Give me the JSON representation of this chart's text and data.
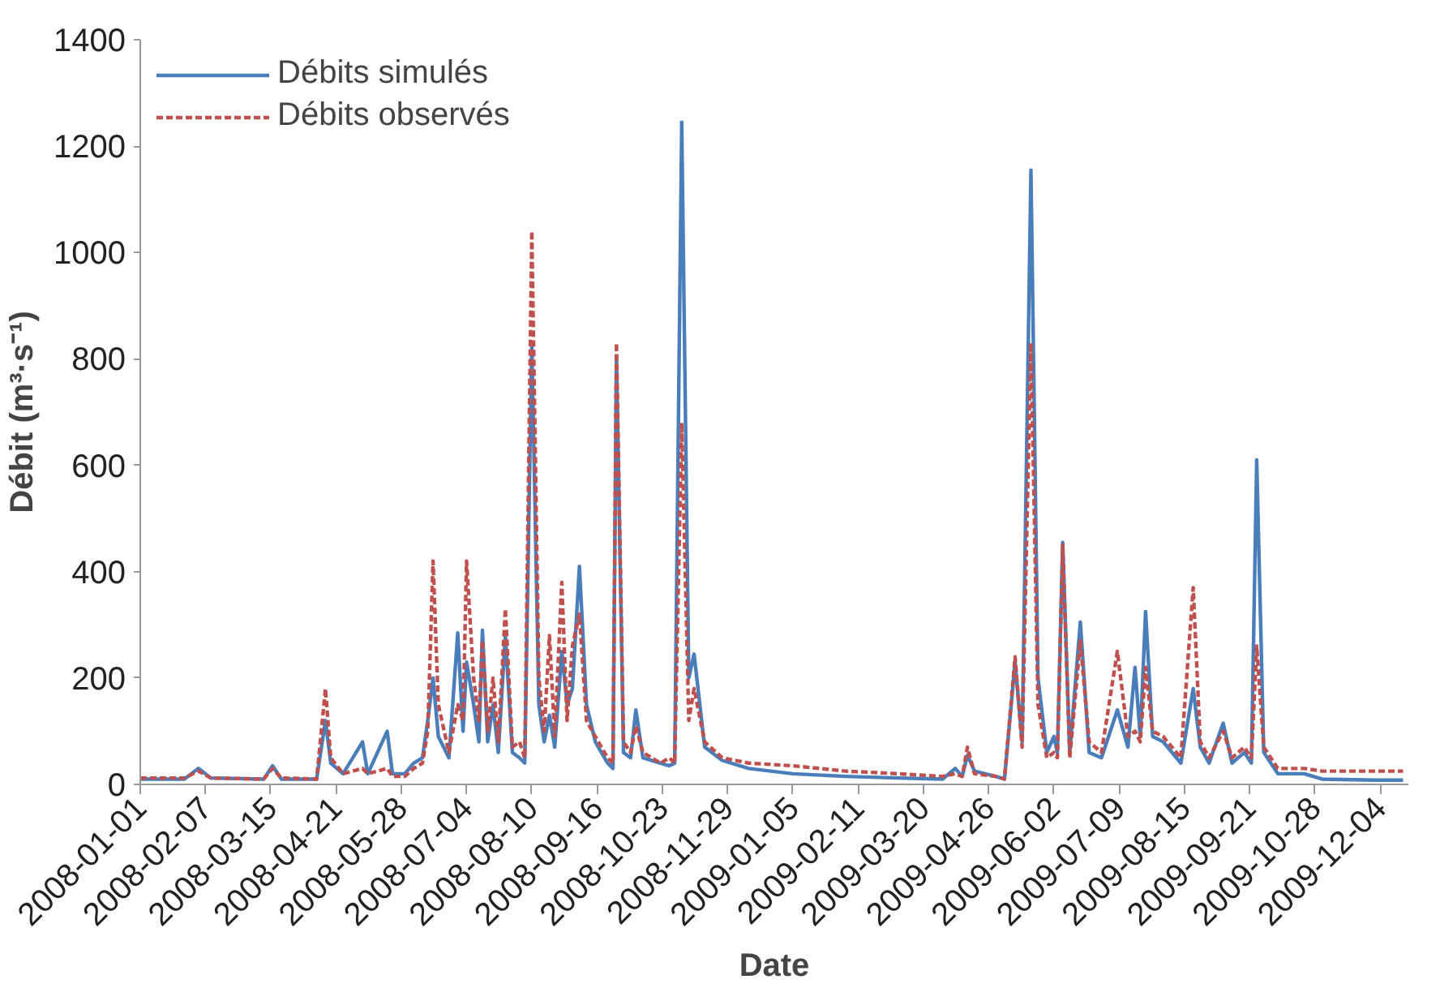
{
  "chart_data": {
    "type": "line",
    "xlabel": "Date",
    "ylabel": "Débit (m³·s⁻¹)",
    "x": [
      "2008-01-01",
      "2008-01-26",
      "2008-02-03",
      "2008-02-10",
      "2008-03-11",
      "2008-03-16",
      "2008-03-21",
      "2008-04-10",
      "2008-04-15",
      "2008-04-18",
      "2008-04-25",
      "2008-05-06",
      "2008-05-09",
      "2008-05-20",
      "2008-05-23",
      "2008-05-30",
      "2008-06-04",
      "2008-06-09",
      "2008-06-12",
      "2008-06-15",
      "2008-06-18",
      "2008-06-24",
      "2008-06-29",
      "2008-07-02",
      "2008-07-04",
      "2008-07-08",
      "2008-07-11",
      "2008-07-13",
      "2008-07-16",
      "2008-07-19",
      "2008-07-22",
      "2008-07-26",
      "2008-07-30",
      "2008-08-03",
      "2008-08-06",
      "2008-08-10",
      "2008-08-14",
      "2008-08-17",
      "2008-08-20",
      "2008-08-23",
      "2008-08-27",
      "2008-08-30",
      "2008-09-02",
      "2008-09-06",
      "2008-09-10",
      "2008-09-15",
      "2008-09-22",
      "2008-09-25",
      "2008-09-27",
      "2008-10-01",
      "2008-10-05",
      "2008-10-08",
      "2008-10-12",
      "2008-10-22",
      "2008-10-27",
      "2008-10-30",
      "2008-11-03",
      "2008-11-07",
      "2008-11-10",
      "2008-11-16",
      "2008-11-26",
      "2008-12-11",
      "2009-01-05",
      "2009-02-04",
      "2009-03-06",
      "2009-03-31",
      "2009-04-07",
      "2009-04-11",
      "2009-04-14",
      "2009-04-18",
      "2009-04-30",
      "2009-05-05",
      "2009-05-11",
      "2009-05-15",
      "2009-05-20",
      "2009-05-24",
      "2009-05-29",
      "2009-06-02",
      "2009-06-04",
      "2009-06-07",
      "2009-06-11",
      "2009-06-17",
      "2009-06-22",
      "2009-06-29",
      "2009-07-08",
      "2009-07-14",
      "2009-07-18",
      "2009-07-21",
      "2009-07-24",
      "2009-07-28",
      "2009-08-03",
      "2009-08-13",
      "2009-08-20",
      "2009-08-24",
      "2009-08-29",
      "2009-09-06",
      "2009-09-11",
      "2009-09-18",
      "2009-09-22",
      "2009-09-25",
      "2009-09-29",
      "2009-10-07",
      "2009-10-22",
      "2009-11-01",
      "2009-12-01",
      "2009-12-17"
    ],
    "series": [
      {
        "name": "Débits simulés",
        "color": "#4a7ebb",
        "line_style": "solid",
        "values": [
          10,
          10,
          30,
          12,
          10,
          35,
          10,
          10,
          120,
          40,
          20,
          80,
          20,
          100,
          20,
          20,
          40,
          50,
          120,
          200,
          90,
          50,
          285,
          100,
          230,
          150,
          80,
          290,
          80,
          150,
          60,
          280,
          60,
          50,
          40,
          830,
          150,
          80,
          130,
          70,
          250,
          150,
          180,
          410,
          150,
          80,
          40,
          30,
          800,
          60,
          50,
          140,
          50,
          40,
          35,
          40,
          1245,
          200,
          245,
          70,
          45,
          30,
          20,
          15,
          12,
          10,
          30,
          15,
          55,
          25,
          15,
          10,
          230,
          80,
          1155,
          200,
          60,
          90,
          60,
          455,
          60,
          305,
          60,
          50,
          140,
          70,
          220,
          90,
          325,
          90,
          80,
          40,
          180,
          70,
          40,
          115,
          40,
          60,
          40,
          610,
          60,
          20,
          20,
          10,
          8,
          8
        ]
      },
      {
        "name": "Débits observés",
        "color": "#c0504d",
        "line_style": "dashed",
        "values": [
          12,
          12,
          25,
          12,
          10,
          30,
          12,
          10,
          180,
          50,
          20,
          30,
          20,
          30,
          15,
          15,
          30,
          40,
          100,
          420,
          150,
          60,
          150,
          120,
          420,
          200,
          120,
          270,
          100,
          200,
          80,
          330,
          70,
          80,
          50,
          1040,
          200,
          100,
          280,
          90,
          380,
          120,
          260,
          320,
          120,
          90,
          50,
          40,
          830,
          80,
          60,
          110,
          60,
          40,
          50,
          40,
          680,
          120,
          180,
          80,
          50,
          40,
          35,
          25,
          20,
          15,
          20,
          15,
          70,
          20,
          15,
          10,
          240,
          70,
          830,
          150,
          50,
          60,
          50,
          450,
          50,
          270,
          80,
          60,
          250,
          90,
          100,
          80,
          220,
          100,
          90,
          50,
          370,
          80,
          50,
          100,
          50,
          70,
          50,
          260,
          70,
          30,
          30,
          25,
          25,
          25
        ]
      }
    ],
    "xlim": [
      "2008-01-01",
      "2009-12-20"
    ],
    "xticks": [
      "2008-01-01",
      "2008-02-07",
      "2008-03-15",
      "2008-04-21",
      "2008-05-28",
      "2008-07-04",
      "2008-08-10",
      "2008-09-16",
      "2008-10-23",
      "2008-11-29",
      "2009-01-05",
      "2009-02-11",
      "2009-03-20",
      "2009-04-26",
      "2009-06-02",
      "2009-07-09",
      "2009-08-15",
      "2009-09-21",
      "2009-10-28",
      "2009-12-04"
    ],
    "ylim": [
      0,
      1400
    ],
    "yticks": [
      0,
      200,
      400,
      600,
      800,
      1000,
      1200,
      1400
    ],
    "grid": false,
    "legend": "top left",
    "marker": "none"
  }
}
